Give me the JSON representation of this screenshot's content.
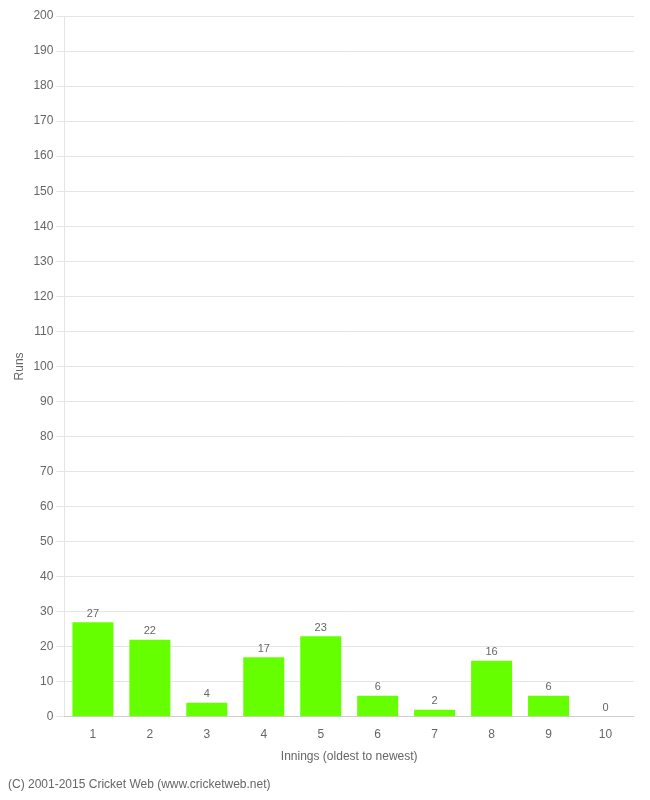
{
  "chart_data": {
    "type": "bar",
    "categories": [
      "1",
      "2",
      "3",
      "4",
      "5",
      "6",
      "7",
      "8",
      "9",
      "10"
    ],
    "values": [
      27,
      22,
      4,
      17,
      23,
      6,
      2,
      16,
      6,
      0
    ],
    "color": "#66ff00",
    "xlabel": "Innings (oldest to newest)",
    "ylabel": "Runs",
    "ylim": [
      0,
      200
    ],
    "yticks": [
      0,
      10,
      20,
      30,
      40,
      50,
      60,
      70,
      80,
      90,
      100,
      110,
      120,
      130,
      140,
      150,
      160,
      170,
      180,
      190,
      200
    ],
    "grid": true,
    "data_labels": true,
    "annotations": [
      "(C) 2001-2015 Cricket Web (www.cricketweb.net)"
    ]
  }
}
